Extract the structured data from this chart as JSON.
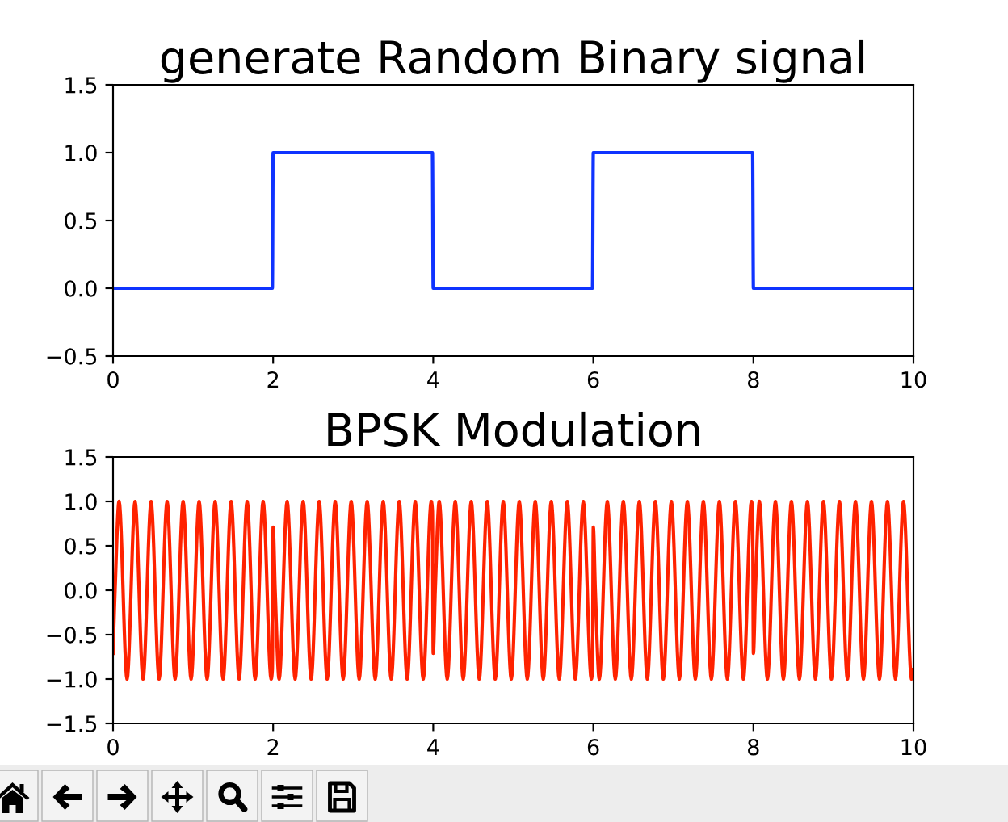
{
  "chart_data": [
    {
      "type": "line",
      "title": "generate Random Binary signal",
      "x": [
        0,
        1.99,
        2,
        3.99,
        4,
        5.99,
        6,
        7.99,
        8,
        9.99
      ],
      "values": [
        0,
        0,
        1,
        1,
        0,
        0,
        1,
        1,
        0,
        0
      ],
      "color": "#0f33ff",
      "xlim": [
        0,
        10
      ],
      "ylim": [
        -0.5,
        1.5
      ],
      "xticks": [
        0,
        2,
        4,
        6,
        8,
        10
      ],
      "yticks": [
        {
          "value": -0.5,
          "label": "−0.5"
        },
        {
          "value": 0,
          "label": "0.0"
        },
        {
          "value": 0.5,
          "label": "0.5"
        },
        {
          "value": 1,
          "label": "1.0"
        },
        {
          "value": 1.5,
          "label": "1.5"
        }
      ]
    },
    {
      "type": "line",
      "title": "BPSK Modulation",
      "x": [
        0,
        0.025,
        0.075,
        0.175,
        0.275,
        0.375,
        0.475,
        0.575,
        0.675,
        0.775,
        0.875,
        0.975,
        1.075,
        1.175,
        1.275,
        1.375,
        1.475,
        1.575,
        1.675,
        1.775,
        1.875,
        1.975,
        1.99,
        2,
        2.025,
        2.075,
        2.175,
        2.275,
        2.375,
        2.475,
        2.575,
        2.675,
        2.775,
        2.875,
        2.975,
        3.075,
        3.175,
        3.275,
        3.375,
        3.475,
        3.575,
        3.675,
        3.775,
        3.875,
        3.975,
        3.99,
        4,
        4.025,
        4.075,
        4.175,
        4.275,
        4.375,
        4.475,
        4.575,
        4.675,
        4.775,
        4.875,
        4.975,
        5.075,
        5.175,
        5.275,
        5.375,
        5.475,
        5.575,
        5.675,
        5.775,
        5.875,
        5.975,
        5.99,
        6,
        6.025,
        6.075,
        6.175,
        6.275,
        6.375,
        6.475,
        6.575,
        6.675,
        6.775,
        6.875,
        6.975,
        7.075,
        7.175,
        7.275,
        7.375,
        7.475,
        7.575,
        7.675,
        7.775,
        7.875,
        7.975,
        7.99,
        8,
        8.025,
        8.075,
        8.175,
        8.275,
        8.375,
        8.475,
        8.575,
        8.675,
        8.775,
        8.875,
        8.975,
        9.075,
        9.175,
        9.275,
        9.375,
        9.475,
        9.575,
        9.675,
        9.775,
        9.875,
        9.975,
        9.99
      ],
      "values": [
        -0.71,
        0,
        1,
        -1,
        1,
        -1,
        1,
        -1,
        1,
        -1,
        1,
        -1,
        1,
        -1,
        1,
        -1,
        1,
        -1,
        1,
        -1,
        1,
        -1,
        -0.89,
        0.71,
        0,
        -1,
        1,
        -1,
        1,
        -1,
        1,
        -1,
        1,
        -1,
        1,
        -1,
        1,
        -1,
        1,
        -1,
        1,
        -1,
        1,
        -1,
        1,
        0.89,
        -0.71,
        0,
        1,
        -1,
        1,
        -1,
        1,
        -1,
        1,
        -1,
        1,
        -1,
        1,
        -1,
        1,
        -1,
        1,
        -1,
        1,
        -1,
        1,
        -1,
        -0.89,
        0.71,
        0,
        -1,
        1,
        -1,
        1,
        -1,
        1,
        -1,
        1,
        -1,
        1,
        -1,
        1,
        -1,
        1,
        -1,
        1,
        -1,
        1,
        -1,
        1,
        0.89,
        -0.71,
        0,
        1,
        -1,
        1,
        -1,
        1,
        -1,
        1,
        -1,
        1,
        -1,
        1,
        -1,
        1,
        -1,
        1,
        -1,
        1,
        -1,
        1,
        -1,
        -0.89
      ],
      "color": "#ff2200",
      "xlim": [
        0,
        10
      ],
      "ylim": [
        -1.5,
        1.5
      ],
      "xticks": [
        0,
        2,
        4,
        6,
        8,
        10
      ],
      "yticks": [
        {
          "value": -1.5,
          "label": "−1.5"
        },
        {
          "value": -1,
          "label": "−1.0"
        },
        {
          "value": -0.5,
          "label": "−0.5"
        },
        {
          "value": 0,
          "label": "0.0"
        },
        {
          "value": 0.5,
          "label": "0.5"
        },
        {
          "value": 1,
          "label": "1.0"
        },
        {
          "value": 1.5,
          "label": "1.5"
        }
      ]
    }
  ]
}
